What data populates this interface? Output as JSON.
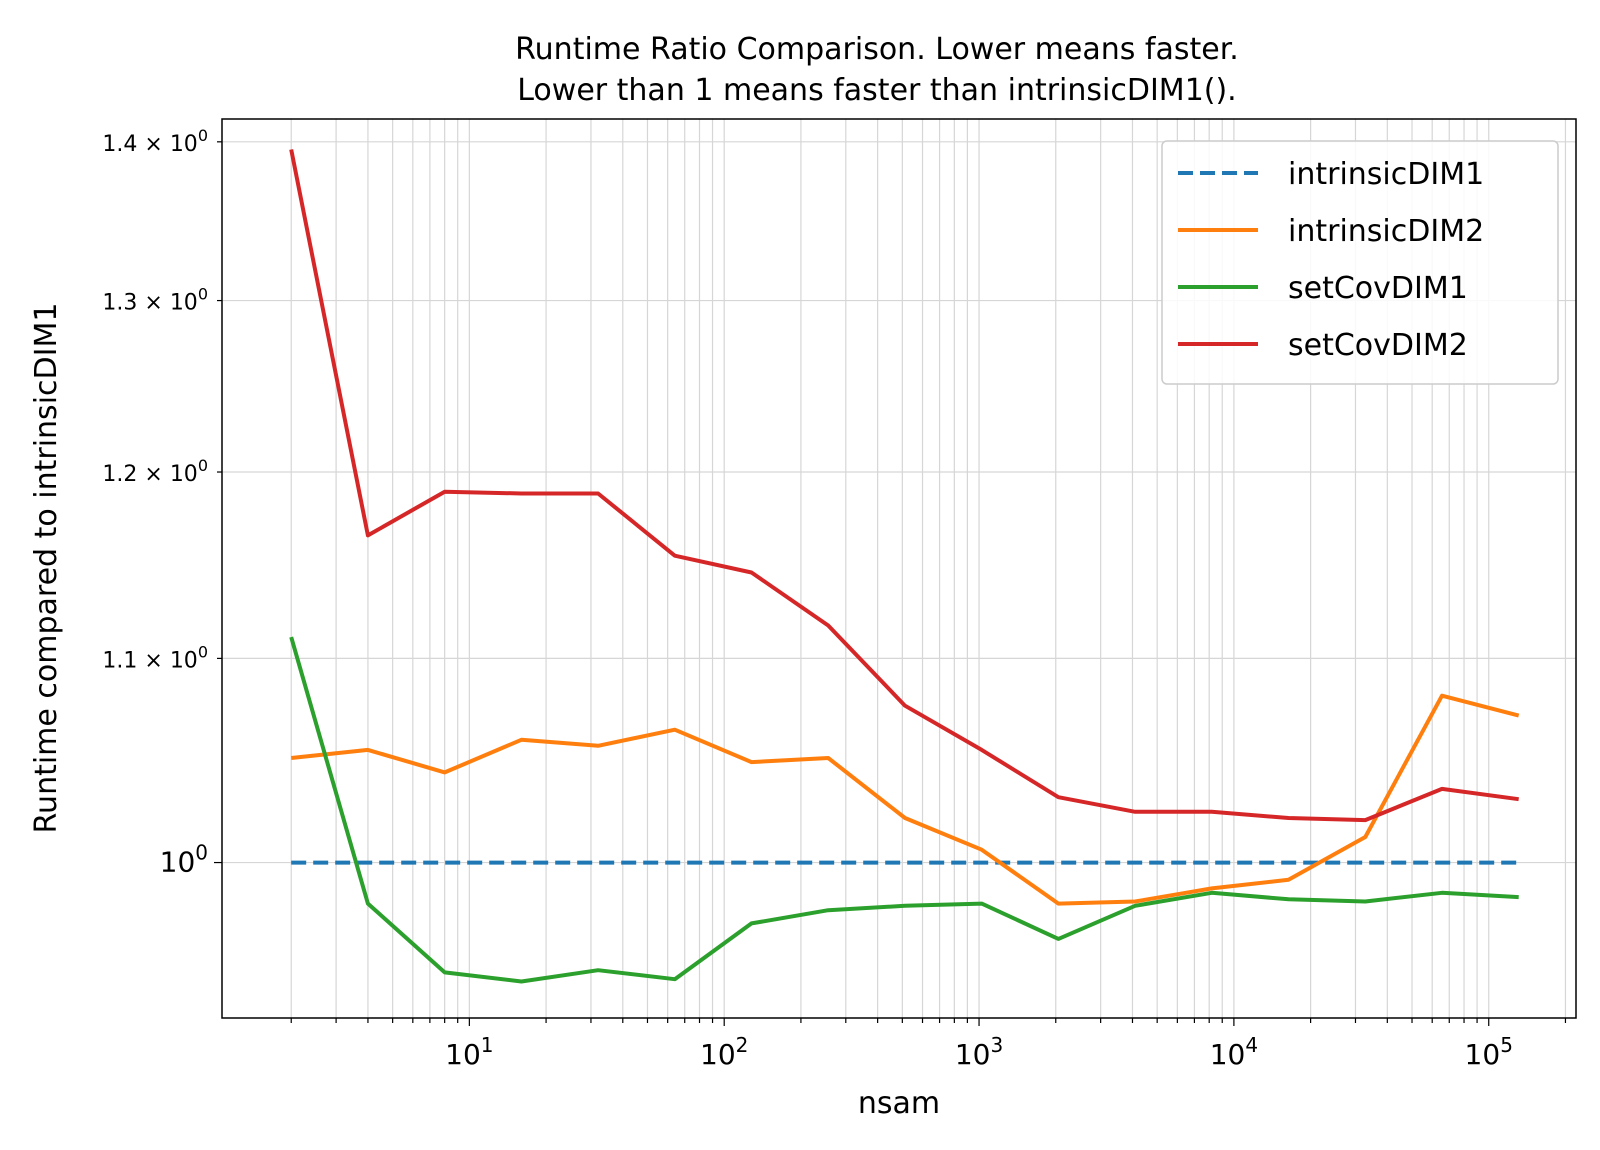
{
  "chart_data": {
    "type": "line",
    "title": [
      "Runtime Ratio Comparison. Lower means faster.",
      "Lower than 1 means faster than intrinsicDIM1()."
    ],
    "xlabel": "nsam",
    "ylabel": "Runtime compared to intrinsicDIM1",
    "xscale": "log",
    "yscale": "log",
    "xlim": [
      1.07,
      220000
    ],
    "ylim": [
      0.93,
      1.415
    ],
    "grid": "both (major and minor)",
    "legend_position": "top-right",
    "x": [
      2,
      4,
      8,
      16,
      32,
      64,
      128,
      256,
      512,
      1024,
      2048,
      4096,
      8192,
      16384,
      32768,
      65536,
      131072
    ],
    "xticks": [
      {
        "value": 10,
        "base": "10",
        "exp": "1"
      },
      {
        "value": 100,
        "base": "10",
        "exp": "2"
      },
      {
        "value": 1000,
        "base": "10",
        "exp": "3"
      },
      {
        "value": 10000,
        "base": "10",
        "exp": "4"
      },
      {
        "value": 100000,
        "base": "10",
        "exp": "5"
      }
    ],
    "yticks": [
      {
        "value": 1.0,
        "label": "10",
        "exp": "0",
        "major": true
      },
      {
        "value": 1.1,
        "label": "1.1 × 10",
        "exp": "0",
        "major": false
      },
      {
        "value": 1.2,
        "label": "1.2 × 10",
        "exp": "0",
        "major": false
      },
      {
        "value": 1.3,
        "label": "1.3 × 10",
        "exp": "0",
        "major": false
      },
      {
        "value": 1.4,
        "label": "1.4 × 10",
        "exp": "0",
        "major": false
      }
    ],
    "series": [
      {
        "name": "intrinsicDIM1",
        "color": "#1f77b4",
        "dashed": true,
        "values": [
          1.0,
          1.0,
          1.0,
          1.0,
          1.0,
          1.0,
          1.0,
          1.0,
          1.0,
          1.0,
          1.0,
          1.0,
          1.0,
          1.0,
          1.0,
          1.0,
          1.0
        ]
      },
      {
        "name": "intrinsicDIM2",
        "color": "#ff7f0e",
        "dashed": false,
        "values": [
          1.05,
          1.054,
          1.043,
          1.059,
          1.056,
          1.064,
          1.048,
          1.05,
          1.021,
          1.006,
          0.981,
          0.982,
          0.988,
          0.992,
          1.012,
          1.081,
          1.071
        ]
      },
      {
        "name": "setCovDIM1",
        "color": "#2ca02c",
        "dashed": false,
        "values": [
          1.111,
          0.981,
          0.95,
          0.946,
          0.951,
          0.947,
          0.972,
          0.978,
          0.98,
          0.981,
          0.965,
          0.98,
          0.986,
          0.983,
          0.982,
          0.986,
          0.984
        ]
      },
      {
        "name": "setCovDIM2",
        "color": "#d62728",
        "dashed": false,
        "values": [
          1.395,
          1.165,
          1.189,
          1.188,
          1.188,
          1.154,
          1.145,
          1.117,
          1.076,
          1.054,
          1.031,
          1.024,
          1.024,
          1.021,
          1.02,
          1.035,
          1.03
        ]
      }
    ]
  }
}
